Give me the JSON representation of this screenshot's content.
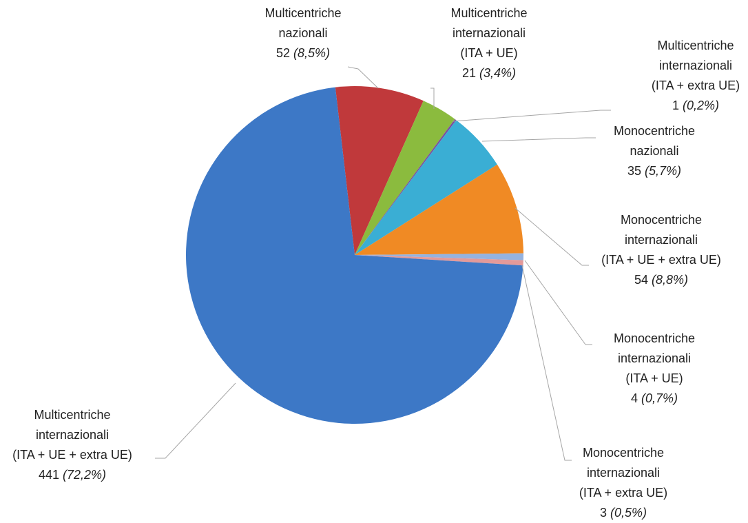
{
  "chart_data": {
    "type": "pie",
    "categories": [
      [
        "Multicentriche",
        "nazionali"
      ],
      [
        "Multicentriche",
        "internazionali",
        "(ITA + UE)"
      ],
      [
        "Multicentriche",
        "internazionali",
        "(ITA + extra UE)"
      ],
      [
        "Monocentriche",
        "nazionali"
      ],
      [
        "Monocentriche",
        "internazionali",
        "(ITA + UE + extra UE)"
      ],
      [
        "Monocentriche",
        "internazionali",
        "(ITA + UE)"
      ],
      [
        "Monocentriche",
        "internazionali",
        "(ITA + extra UE)"
      ],
      [
        "Multicentriche",
        "internazionali",
        "(ITA + UE + extra UE)"
      ]
    ],
    "values": [
      52,
      21,
      1,
      35,
      54,
      4,
      3,
      441
    ],
    "shares": [
      8.5,
      3.4,
      0.2,
      5.7,
      8.8,
      0.7,
      0.5,
      72.2
    ],
    "share_labels": [
      "(8,5%)",
      "(3,4%)",
      "(0,2%)",
      "(5,7%)",
      "(8,8%)",
      "(0,7%)",
      "(0,5%)",
      "(72,2%)"
    ],
    "colors": [
      "#c0393b",
      "#8bbb3e",
      "#7a4fa0",
      "#3aaed4",
      "#f08a24",
      "#95b3e0",
      "#e39a9a",
      "#3d78c6"
    ]
  }
}
